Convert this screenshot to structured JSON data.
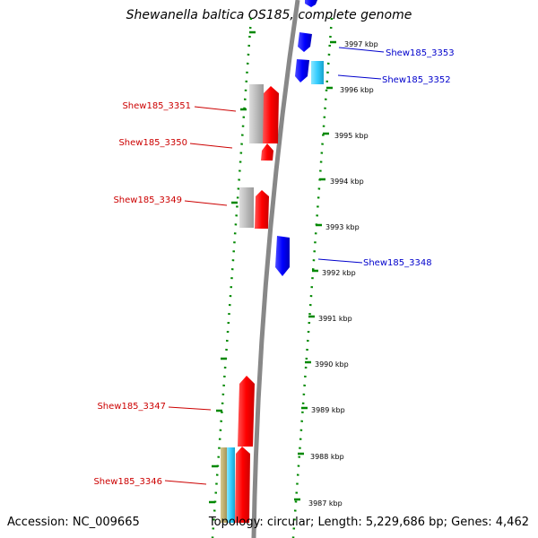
{
  "title": "Shewanella baltica OS185, complete genome",
  "footer": {
    "accession": "Accession: NC_009665",
    "summary": "Topology: circular; Length: 5,229,686 bp; Genes: 4,462"
  },
  "colors": {
    "forward_gene": "#ff0000",
    "reverse_gene": "#0000ff",
    "forward_label": "#cc0000",
    "reverse_label": "#0000cc",
    "backbone": "#888888",
    "tick": "#008800",
    "gene_gray": "#bbbbbb",
    "gene_cyan": "#33ccff",
    "gene_olive": "#b8a86a"
  },
  "scale_labels": [
    "3997 kbp",
    "3996 kbp",
    "3995 kbp",
    "3994 kbp",
    "3993 kbp",
    "3992 kbp",
    "3991 kbp",
    "3990 kbp",
    "3989 kbp",
    "3988 kbp",
    "3987 kbp"
  ],
  "gene_labels": [
    {
      "text": "Shew185_3353",
      "strand": "reverse"
    },
    {
      "text": "Shew185_3352",
      "strand": "reverse"
    },
    {
      "text": "Shew185_3351",
      "strand": "forward"
    },
    {
      "text": "Shew185_3350",
      "strand": "forward"
    },
    {
      "text": "Shew185_3349",
      "strand": "forward"
    },
    {
      "text": "Shew185_3348",
      "strand": "reverse"
    },
    {
      "text": "Shew185_3347",
      "strand": "forward"
    },
    {
      "text": "Shew185_3346",
      "strand": "forward"
    }
  ]
}
